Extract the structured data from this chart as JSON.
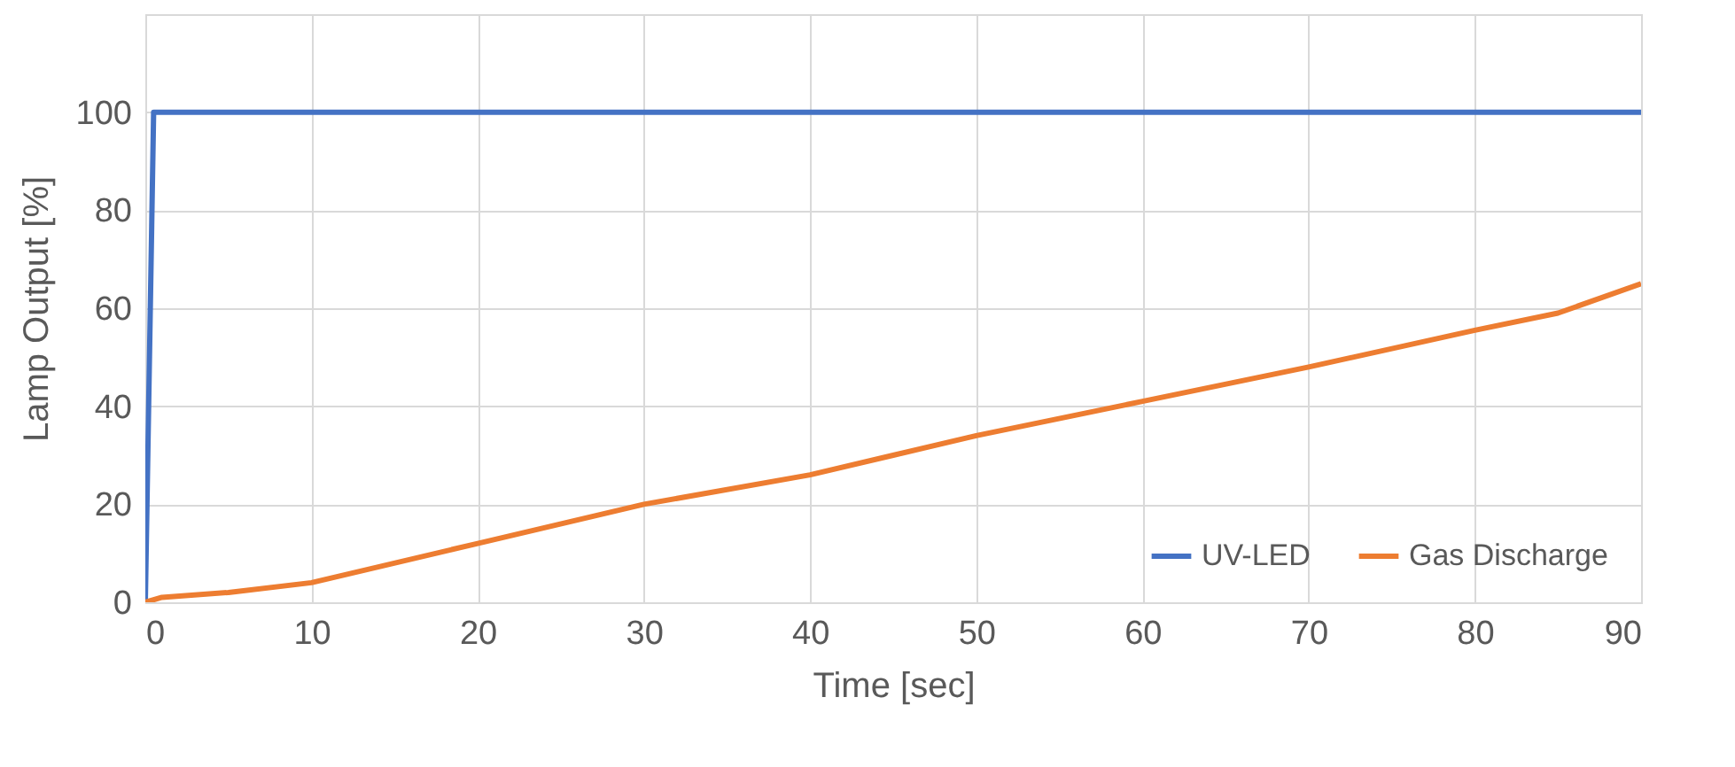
{
  "chart_data": {
    "type": "line",
    "xlabel": "Time [sec]",
    "ylabel": "Lamp Output [%]",
    "xlim": [
      0,
      90
    ],
    "xticks": [
      0,
      10,
      20,
      30,
      40,
      50,
      60,
      70,
      80,
      90
    ],
    "ylim": [
      0,
      120
    ],
    "yticks": [
      0,
      20,
      40,
      60,
      80,
      100,
      {
        "value": 120,
        "label": null
      }
    ],
    "grid": true,
    "legend": "bottom right",
    "marker": "none",
    "line_style": "solid",
    "series": [
      {
        "name": "UV-LED",
        "color": "#4472c4",
        "x": [
          0,
          0.5,
          90
        ],
        "values": [
          0,
          100,
          100
        ]
      },
      {
        "name": "Gas Discharge",
        "color": "#ed7d31",
        "x": [
          0,
          1,
          5,
          10,
          20,
          30,
          40,
          45,
          50,
          60,
          70,
          80,
          85,
          90
        ],
        "values": [
          0,
          1,
          2,
          4,
          12,
          20,
          26,
          30,
          34,
          41,
          48,
          55.5,
          59,
          65
        ]
      }
    ]
  }
}
